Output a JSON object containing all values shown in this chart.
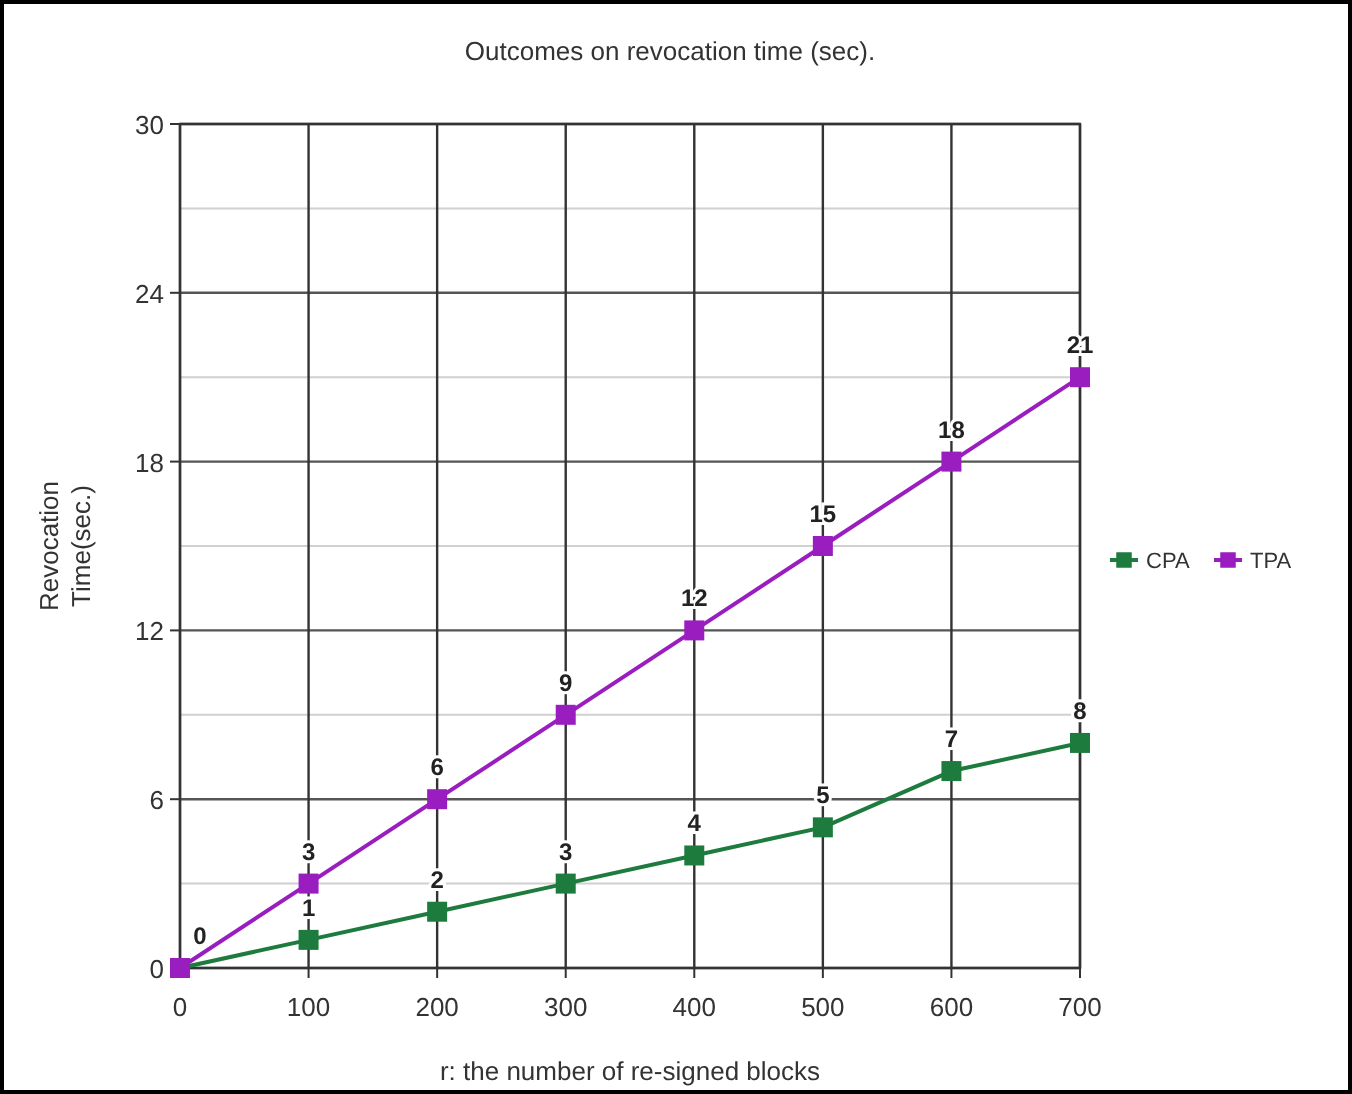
{
  "chart_data": {
    "type": "line",
    "title": "Outcomes on revocation time (sec).",
    "xlabel": "r: the number of re-signed blocks",
    "ylabel": "Revocation Time(sec.)",
    "x": [
      0,
      100,
      200,
      300,
      400,
      500,
      600,
      700
    ],
    "series": [
      {
        "name": "CPA",
        "color": "#1e7b3e",
        "values": [
          0,
          1,
          2,
          3,
          4,
          5,
          7,
          8
        ],
        "value_labels": [
          null,
          "1",
          "2",
          "3",
          "4",
          "5",
          "7",
          "8"
        ]
      },
      {
        "name": "TPA",
        "color": "#9a1dc0",
        "values": [
          0,
          3,
          6,
          9,
          12,
          15,
          18,
          21
        ],
        "value_labels": [
          "0",
          "3",
          "6",
          "9",
          "12",
          "15",
          "18",
          "21"
        ]
      }
    ],
    "xlim": [
      0,
      700
    ],
    "xticks": [
      0,
      100,
      200,
      300,
      400,
      500,
      600,
      700
    ],
    "ylim": [
      0,
      30
    ],
    "yticks": [
      0,
      {
        "value": 3,
        "label": null
      },
      6,
      {
        "value": 9,
        "label": null
      },
      12,
      {
        "value": 15,
        "label": null
      },
      18,
      {
        "value": 21,
        "label": null
      },
      24,
      {
        "value": 27,
        "label": null
      },
      30
    ],
    "grid": true,
    "legend": "right",
    "marker": "square",
    "line_style": "solid"
  }
}
